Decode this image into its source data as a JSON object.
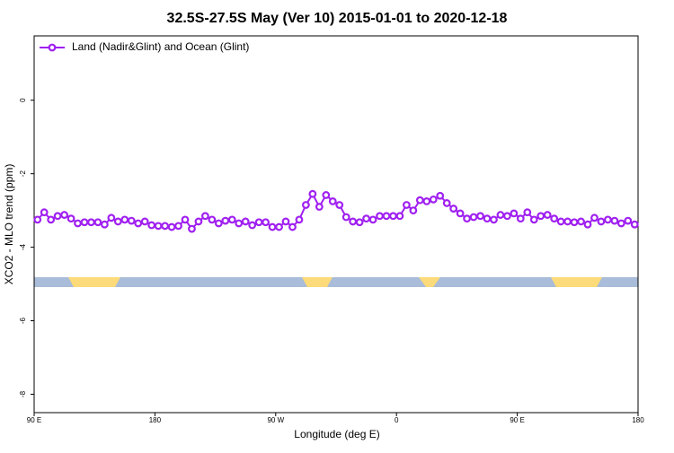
{
  "chart_data": {
    "type": "line",
    "title": "32.5S-27.5S May (Ver 10)   2015-01-01 to 2020-12-18",
    "x_label": "Longitude (deg E)",
    "y_label": "XCO2 - MLO trend (ppm)",
    "x": [
      92.5,
      97.5,
      102.5,
      107.5,
      112.5,
      117.5,
      122.5,
      127.5,
      132.5,
      137.5,
      142.5,
      147.5,
      152.5,
      157.5,
      162.5,
      167.5,
      172.5,
      177.5,
      182.5,
      187.5,
      192.5,
      197.5,
      202.5,
      207.5,
      212.5,
      217.5,
      222.5,
      227.5,
      232.5,
      237.5,
      242.5,
      247.5,
      252.5,
      257.5,
      262.5,
      267.5,
      272.5,
      277.5,
      282.5,
      287.5,
      292.5,
      297.5,
      302.5,
      307.5,
      312.5,
      317.5,
      322.5,
      327.5,
      332.5,
      337.5,
      342.5,
      347.5,
      352.5,
      357.5,
      362.5,
      367.5,
      372.5,
      377.5,
      382.5,
      387.5,
      392.5,
      397.5,
      402.5,
      407.5,
      412.5,
      417.5,
      422.5,
      427.5,
      432.5,
      437.5,
      442.5,
      447.5,
      452.5,
      457.5,
      462.5,
      467.5,
      472.5,
      477.5,
      482.5,
      487.5,
      492.5,
      497.5,
      502.5,
      507.5,
      512.5,
      517.5,
      522.5,
      527.5,
      532.5,
      537.5
    ],
    "series": [
      {
        "name": "Land (Nadir&Glint) and Ocean (Glint)",
        "color": "#a020f0",
        "values": [
          -3.25,
          -3.05,
          -3.25,
          -3.15,
          -3.12,
          -3.22,
          -3.35,
          -3.32,
          -3.32,
          -3.32,
          -3.38,
          -3.2,
          -3.3,
          -3.25,
          -3.28,
          -3.35,
          -3.3,
          -3.4,
          -3.42,
          -3.42,
          -3.45,
          -3.42,
          -3.25,
          -3.5,
          -3.3,
          -3.15,
          -3.25,
          -3.35,
          -3.28,
          -3.25,
          -3.35,
          -3.3,
          -3.4,
          -3.32,
          -3.32,
          -3.45,
          -3.45,
          -3.3,
          -3.45,
          -3.25,
          -2.85,
          -2.55,
          -2.9,
          -2.58,
          -2.75,
          -2.85,
          -3.18,
          -3.3,
          -3.32,
          -3.22,
          -3.25,
          -3.15,
          -3.15,
          -3.15,
          -3.15,
          -2.85,
          -3,
          -2.72,
          -2.75,
          -2.7,
          -2.6,
          -2.8,
          -2.95,
          -3.08,
          -3.22,
          -3.18,
          -3.15,
          -3.22,
          -3.25,
          -3.12,
          -3.15,
          -3.08,
          -3.22,
          -3.05,
          -3.25,
          -3.15,
          -3.12,
          -3.22,
          -3.3,
          -3.3,
          -3.32,
          -3.3,
          -3.38,
          -3.2,
          -3.3,
          -3.25,
          -3.28,
          -3.35,
          -3.28,
          -3.38
        ]
      }
    ],
    "xlim": [
      90,
      540
    ],
    "xticks": [
      {
        "value": 90,
        "label": "90 E"
      },
      180,
      {
        "value": 270,
        "label": "90 W"
      },
      {
        "value": 360,
        "label": "0"
      },
      {
        "value": 450,
        "label": "90 E"
      },
      {
        "value": 540,
        "label": "180"
      }
    ],
    "ylim": [
      -8.5,
      1.75
    ],
    "yticks": [
      0,
      -2,
      -4,
      -6,
      -8
    ],
    "legend": "top-left"
  }
}
